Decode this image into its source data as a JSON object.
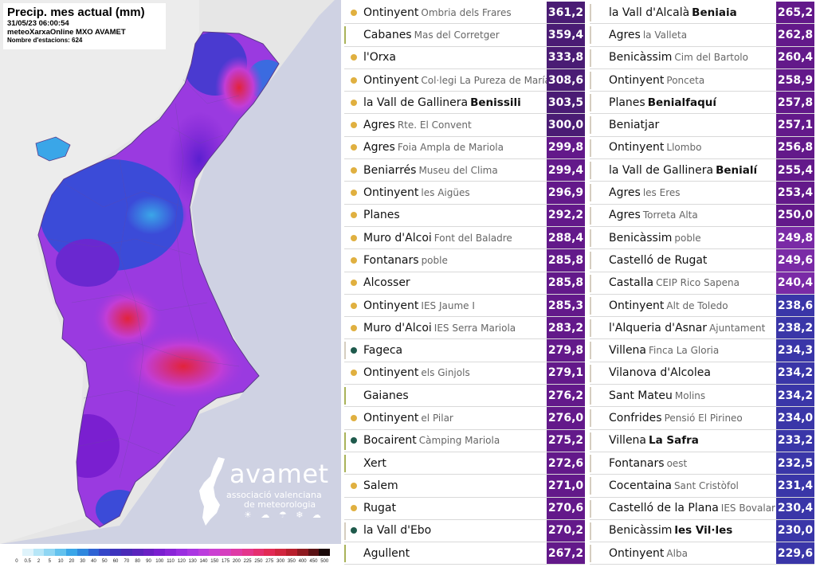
{
  "map": {
    "title": "Precip. mes actual (mm)",
    "datetime": "31/05/23 06:00:54",
    "network": "meteoXarxaOnline MXO AVAMET",
    "stations": "Nombre d'estacions: 624",
    "colors": {
      "sea": "#cfd2e3",
      "land_outside": "#e6e6e6",
      "deep_purple": "#7a1fd0",
      "violet": "#9a3ae0",
      "magenta": "#c23dd6",
      "blue": "#3b4bd8",
      "light_blue": "#3aa6e8",
      "red": "#e2233b"
    },
    "legend": {
      "labels": [
        "0",
        "0.5",
        "2",
        "5",
        "10",
        "20",
        "30",
        "40",
        "50",
        "60",
        "70",
        "80",
        "90",
        "100",
        "110",
        "120",
        "130",
        "140",
        "150",
        "175",
        "200",
        "225",
        "250",
        "275",
        "300",
        "350",
        "400",
        "450",
        "500"
      ],
      "colors": [
        "#ffffff",
        "#dff3fb",
        "#b7e6f7",
        "#8fd6f3",
        "#63c2ee",
        "#3aa6e8",
        "#2f88de",
        "#2f63d4",
        "#3546c8",
        "#3d34bd",
        "#4a2ab8",
        "#5a24bd",
        "#6a20c4",
        "#7a1fd0",
        "#8a25d8",
        "#9a2ee0",
        "#aa36e2",
        "#bb3ddd",
        "#cb41d2",
        "#d63fbf",
        "#df3aa6",
        "#e4358c",
        "#e52f70",
        "#e22a55",
        "#d1263f",
        "#b81f2d",
        "#8e1a20",
        "#5a1215",
        "#1a0a0a"
      ]
    }
  },
  "logo": {
    "name": "avamet",
    "line1": "associació valenciana",
    "line2": "de meteorologia"
  },
  "ranking": {
    "left": [
      {
        "town": "Ontinyent",
        "place": "Ombria dels Frares",
        "bold": false,
        "value": "361,2",
        "dot": "#e0b040",
        "bar": "",
        "box": "#4a1c74"
      },
      {
        "town": "Cabanes",
        "place": "Mas del Corretger",
        "bold": false,
        "value": "359,4",
        "dot": "",
        "bar": "#a9b35a",
        "box": "#4a1c74"
      },
      {
        "town": "l'Orxa",
        "place": "",
        "bold": false,
        "value": "333,8",
        "dot": "#e0b040",
        "bar": "",
        "box": "#4a1c74"
      },
      {
        "town": "Ontinyent",
        "place": "Col·legi La Pureza de María",
        "bold": false,
        "value": "308,6",
        "dot": "#e0b040",
        "bar": "",
        "box": "#4a1c74"
      },
      {
        "town": "la Vall de Gallinera",
        "place": "Benissili",
        "bold": true,
        "value": "303,5",
        "dot": "#e0b040",
        "bar": "",
        "box": "#4a1c74"
      },
      {
        "town": "Agres",
        "place": "Rte. El Convent",
        "bold": false,
        "value": "300,0",
        "dot": "#e0b040",
        "bar": "",
        "box": "#4a1c74"
      },
      {
        "town": "Agres",
        "place": "Foia Ampla de Mariola",
        "bold": false,
        "value": "299,8",
        "dot": "#e0b040",
        "bar": "",
        "box": "#63198a"
      },
      {
        "town": "Beniarrés",
        "place": "Museu del Clima",
        "bold": false,
        "value": "299,4",
        "dot": "#e0b040",
        "bar": "",
        "box": "#63198a"
      },
      {
        "town": "Ontinyent",
        "place": "les Aigües",
        "bold": false,
        "value": "296,9",
        "dot": "#e0b040",
        "bar": "",
        "box": "#63198a"
      },
      {
        "town": "Planes",
        "place": "",
        "bold": false,
        "value": "292,2",
        "dot": "#e0b040",
        "bar": "",
        "box": "#63198a"
      },
      {
        "town": "Muro d'Alcoi",
        "place": "Font del Baladre",
        "bold": false,
        "value": "288,4",
        "dot": "#e0b040",
        "bar": "",
        "box": "#63198a"
      },
      {
        "town": "Fontanars",
        "place": "poble",
        "bold": false,
        "value": "285,8",
        "dot": "#e0b040",
        "bar": "",
        "box": "#63198a"
      },
      {
        "town": "Alcosser",
        "place": "",
        "bold": false,
        "value": "285,8",
        "dot": "#e0b040",
        "bar": "",
        "box": "#63198a"
      },
      {
        "town": "Ontinyent",
        "place": "IES Jaume I",
        "bold": false,
        "value": "285,3",
        "dot": "#e0b040",
        "bar": "",
        "box": "#63198a"
      },
      {
        "town": "Muro d'Alcoi",
        "place": "IES Serra Mariola",
        "bold": false,
        "value": "283,2",
        "dot": "#e0b040",
        "bar": "",
        "box": "#63198a"
      },
      {
        "town": "Fageca",
        "place": "",
        "bold": false,
        "value": "279,8",
        "dot": "#1f5a4c",
        "bar": "#d5cdc0",
        "box": "#63198a"
      },
      {
        "town": "Ontinyent",
        "place": "els Ginjols",
        "bold": false,
        "value": "279,1",
        "dot": "#e0b040",
        "bar": "",
        "box": "#63198a"
      },
      {
        "town": "Gaianes",
        "place": "",
        "bold": false,
        "value": "276,2",
        "dot": "",
        "bar": "#a9b35a",
        "box": "#63198a"
      },
      {
        "town": "Ontinyent",
        "place": "el Pilar",
        "bold": false,
        "value": "276,0",
        "dot": "#e0b040",
        "bar": "",
        "box": "#63198a"
      },
      {
        "town": "Bocairent",
        "place": "Càmping Mariola",
        "bold": false,
        "value": "275,2",
        "dot": "#1f5a4c",
        "bar": "#a9b35a",
        "box": "#63198a"
      },
      {
        "town": "Xert",
        "place": "",
        "bold": false,
        "value": "272,6",
        "dot": "",
        "bar": "#a9b35a",
        "box": "#63198a"
      },
      {
        "town": "Salem",
        "place": "",
        "bold": false,
        "value": "271,0",
        "dot": "#e0b040",
        "bar": "",
        "box": "#63198a"
      },
      {
        "town": "Rugat",
        "place": "",
        "bold": false,
        "value": "270,6",
        "dot": "#e0b040",
        "bar": "",
        "box": "#63198a"
      },
      {
        "town": "la Vall d'Ebo",
        "place": "",
        "bold": false,
        "value": "270,2",
        "dot": "#1f5a4c",
        "bar": "#d5cdc0",
        "box": "#63198a"
      },
      {
        "town": "Agullent",
        "place": "",
        "bold": false,
        "value": "267,2",
        "dot": "",
        "bar": "#a9b35a",
        "box": "#63198a"
      }
    ],
    "right": [
      {
        "town": "la Vall d'Alcalà",
        "place": "Beniaia",
        "bold": true,
        "value": "265,2",
        "dot": "",
        "bar": "#d5cdc0",
        "box": "#63198a"
      },
      {
        "town": "Agres",
        "place": "la Valleta",
        "bold": false,
        "value": "262,8",
        "dot": "",
        "bar": "#d5cdc0",
        "box": "#63198a"
      },
      {
        "town": "Benicàssim",
        "place": "Cim del Bartolo",
        "bold": false,
        "value": "260,4",
        "dot": "",
        "bar": "#d5cdc0",
        "box": "#63198a"
      },
      {
        "town": "Ontinyent",
        "place": "Ponceta",
        "bold": false,
        "value": "258,9",
        "dot": "",
        "bar": "#d5cdc0",
        "box": "#63198a"
      },
      {
        "town": "Planes",
        "place": "Benialfaquí",
        "bold": true,
        "value": "257,8",
        "dot": "",
        "bar": "#d5cdc0",
        "box": "#63198a"
      },
      {
        "town": "Beniatjar",
        "place": "",
        "bold": false,
        "value": "257,1",
        "dot": "",
        "bar": "#d5cdc0",
        "box": "#63198a"
      },
      {
        "town": "Ontinyent",
        "place": "Llombo",
        "bold": false,
        "value": "256,8",
        "dot": "",
        "bar": "#d5cdc0",
        "box": "#63198a"
      },
      {
        "town": "la Vall de Gallinera",
        "place": "Benialí",
        "bold": true,
        "value": "255,4",
        "dot": "",
        "bar": "#d5cdc0",
        "box": "#63198a"
      },
      {
        "town": "Agres",
        "place": "les Eres",
        "bold": false,
        "value": "253,4",
        "dot": "",
        "bar": "#d5cdc0",
        "box": "#63198a"
      },
      {
        "town": "Agres",
        "place": "Torreta Alta",
        "bold": false,
        "value": "250,0",
        "dot": "",
        "bar": "#d5cdc0",
        "box": "#63198a"
      },
      {
        "town": "Benicàssim",
        "place": "poble",
        "bold": false,
        "value": "249,8",
        "dot": "",
        "bar": "#d5cdc0",
        "box": "#7a2aa6"
      },
      {
        "town": "Castelló de Rugat",
        "place": "",
        "bold": false,
        "value": "249,6",
        "dot": "",
        "bar": "#d5cdc0",
        "box": "#7a2aa6"
      },
      {
        "town": "Castalla",
        "place": "CEIP Rico Sapena",
        "bold": false,
        "value": "240,4",
        "dot": "",
        "bar": "#d5cdc0",
        "box": "#7a2aa6"
      },
      {
        "town": "Ontinyent",
        "place": "Alt de Toledo",
        "bold": false,
        "value": "238,6",
        "dot": "",
        "bar": "#d5cdc0",
        "box": "#3a36a8"
      },
      {
        "town": "l'Alqueria d'Asnar",
        "place": "Ajuntament",
        "bold": false,
        "value": "238,2",
        "dot": "",
        "bar": "#d5cdc0",
        "box": "#3a36a8"
      },
      {
        "town": "Villena",
        "place": "Finca La Gloria",
        "bold": false,
        "value": "234,3",
        "dot": "",
        "bar": "#d5cdc0",
        "box": "#3a36a8"
      },
      {
        "town": "Vilanova d'Alcolea",
        "place": "",
        "bold": false,
        "value": "234,2",
        "dot": "",
        "bar": "#d5cdc0",
        "box": "#3a36a8"
      },
      {
        "town": "Sant Mateu",
        "place": "Molins",
        "bold": false,
        "value": "234,2",
        "dot": "",
        "bar": "#d5cdc0",
        "box": "#3a36a8"
      },
      {
        "town": "Confrides",
        "place": "Pensió El Pirineo",
        "bold": false,
        "value": "234,0",
        "dot": "",
        "bar": "#d5cdc0",
        "box": "#3a36a8"
      },
      {
        "town": "Villena",
        "place": "La Safra",
        "bold": true,
        "value": "233,2",
        "dot": "",
        "bar": "#d5cdc0",
        "box": "#3a36a8"
      },
      {
        "town": "Fontanars",
        "place": "oest",
        "bold": false,
        "value": "232,5",
        "dot": "",
        "bar": "#d5cdc0",
        "box": "#3a36a8"
      },
      {
        "town": "Cocentaina",
        "place": "Sant Cristòfol",
        "bold": false,
        "value": "231,4",
        "dot": "",
        "bar": "#d5cdc0",
        "box": "#3a36a8"
      },
      {
        "town": "Castelló de la Plana",
        "place": "IES Bovalar",
        "bold": false,
        "value": "230,4",
        "dot": "",
        "bar": "#d5cdc0",
        "box": "#3a36a8"
      },
      {
        "town": "Benicàssim",
        "place": "les Vil·les",
        "bold": true,
        "value": "230,0",
        "dot": "",
        "bar": "#d5cdc0",
        "box": "#3a36a8"
      },
      {
        "town": "Ontinyent",
        "place": "Alba",
        "bold": false,
        "value": "229,6",
        "dot": "",
        "bar": "#d5cdc0",
        "box": "#3a36a8"
      }
    ]
  }
}
